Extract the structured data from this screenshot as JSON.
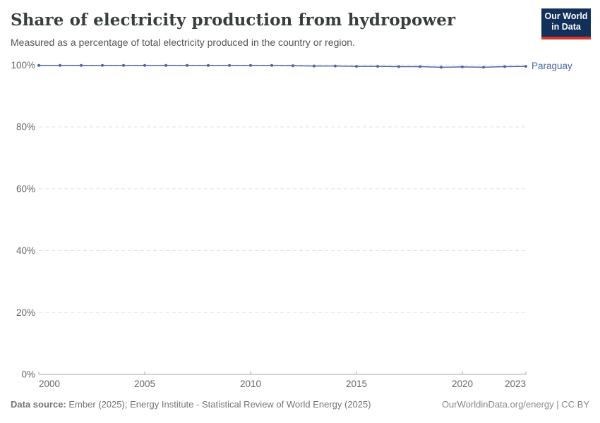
{
  "header": {
    "title": "Share of electricity production from hydropower",
    "subtitle": "Measured as a percentage of total electricity produced in the country or region.",
    "logo": {
      "line1": "Our World",
      "line2": "in Data",
      "bg_color": "#12305a",
      "accent_color": "#d8352b"
    }
  },
  "chart_data": {
    "type": "line",
    "title": "Share of electricity production from hydropower",
    "subtitle": "Measured as a percentage of total electricity produced in the country or region.",
    "x": [
      2000,
      2001,
      2002,
      2003,
      2004,
      2005,
      2006,
      2007,
      2008,
      2009,
      2010,
      2011,
      2012,
      2013,
      2014,
      2015,
      2016,
      2017,
      2018,
      2019,
      2020,
      2021,
      2022,
      2023
    ],
    "series": [
      {
        "name": "Paraguay",
        "color": "#4c68a2",
        "values": [
          99.9,
          99.9,
          99.9,
          99.9,
          99.9,
          99.9,
          99.9,
          99.9,
          99.9,
          99.9,
          99.9,
          99.9,
          99.8,
          99.7,
          99.7,
          99.6,
          99.6,
          99.5,
          99.5,
          99.3,
          99.4,
          99.3,
          99.5,
          99.6
        ]
      }
    ],
    "x_ticks": [
      2000,
      2005,
      2010,
      2015,
      2020,
      2023
    ],
    "y_ticks": [
      0,
      20,
      40,
      60,
      80,
      100
    ],
    "y_tick_suffix": "%",
    "xlim": [
      2000,
      2023
    ],
    "ylim": [
      0,
      100
    ],
    "grid": "horizontal-dashed",
    "legend_position": "end-of-line",
    "gridline_color": "#e0e0e0",
    "axis_color": "#a8a8a8"
  },
  "footer": {
    "source_label": "Data source:",
    "source_text": " Ember (2025); Energy Institute - Statistical Review of World Energy (2025)",
    "license_text": "OurWorldinData.org/energy | CC BY"
  }
}
